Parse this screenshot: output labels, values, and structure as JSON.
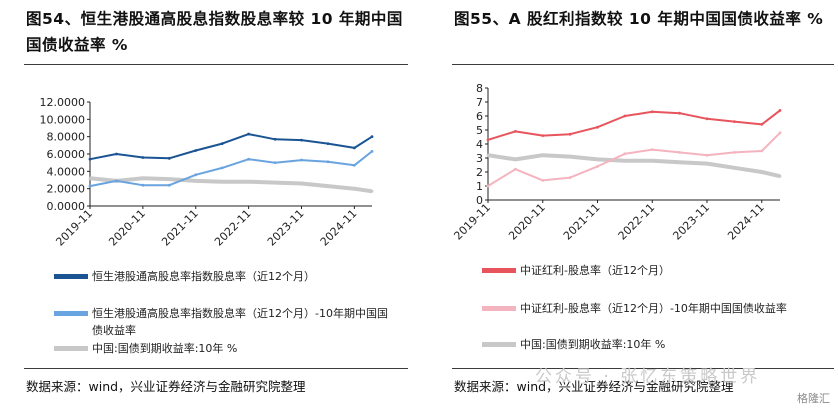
{
  "left": {
    "title": "图54、恒生港股通高股息指数股息率较  10  年期中国国债收益率  %",
    "source": "数据来源：wind，兴业证券经济与金融研究院整理",
    "legend": [
      {
        "label": "恒生港股通高股息率指数股息率（近12个月）",
        "color": "#1b5493"
      },
      {
        "label": "恒生港股通高股息率指数股息率（近12个月）-10年期中国国债收益率",
        "color": "#6aa4e0"
      },
      {
        "label": "中国:国债到期收益率:10年  %",
        "color": "#c8c8c8"
      }
    ]
  },
  "right": {
    "title": "图55、A  股红利指数较  10  年期中国国债收益率  %",
    "source": "数据来源：wind，兴业证券经济与金融研究院整理",
    "legend": [
      {
        "label": "中证红利-股息率（近12个月）",
        "color": "#e8545c"
      },
      {
        "label": "中证红利-股息率（近12个月）-10年期中国国债收益率",
        "color": "#f4b4bf"
      },
      {
        "label": "中国:国债到期收益率:10年  %",
        "color": "#c8c8c8"
      }
    ]
  },
  "watermark": "公众号 · 张忆东策略世界",
  "logo": "格隆汇",
  "chart_data": [
    {
      "type": "line",
      "x": [
        "2019-11",
        "2020-05",
        "2020-11",
        "2021-05",
        "2021-11",
        "2022-05",
        "2022-11",
        "2023-05",
        "2023-11",
        "2024-05",
        "2024-11",
        "2025-03"
      ],
      "xticks": [
        "2019-11",
        "2020-11",
        "2021-11",
        "2022-11",
        "2023-11",
        "2024-11"
      ],
      "yticks": [
        "0.0000",
        "2.0000",
        "4.0000",
        "6.0000",
        "8.0000",
        "10.0000",
        "12.0000"
      ],
      "ylim": [
        0,
        12
      ],
      "series": [
        {
          "name": "恒生港股通高股息率指数股息率（近12个月）",
          "color": "#1b5493",
          "values": [
            5.4,
            6.0,
            5.6,
            5.5,
            6.4,
            7.2,
            8.3,
            7.7,
            7.6,
            7.2,
            6.7,
            8.0
          ]
        },
        {
          "name": "恒生港股通高股息率指数股息率（近12个月）-10年期中国国债收益率",
          "color": "#6aa4e0",
          "values": [
            2.3,
            2.9,
            2.4,
            2.4,
            3.6,
            4.4,
            5.4,
            5.0,
            5.3,
            5.1,
            4.7,
            6.3
          ]
        },
        {
          "name": "中国:国债到期收益率:10年  %",
          "color": "#c8c8c8",
          "values": [
            3.2,
            2.9,
            3.2,
            3.1,
            2.9,
            2.8,
            2.8,
            2.7,
            2.6,
            2.3,
            2.0,
            1.7
          ]
        }
      ]
    },
    {
      "type": "line",
      "x": [
        "2019-11",
        "2020-05",
        "2020-11",
        "2021-05",
        "2021-11",
        "2022-05",
        "2022-11",
        "2023-05",
        "2023-11",
        "2024-05",
        "2024-11",
        "2025-03"
      ],
      "xticks": [
        "2019-11",
        "2020-11",
        "2021-11",
        "2022-11",
        "2023-11",
        "2024-11"
      ],
      "yticks": [
        "0",
        "1",
        "2",
        "3",
        "4",
        "5",
        "6",
        "7",
        "8"
      ],
      "ylim": [
        0,
        8
      ],
      "series": [
        {
          "name": "中证红利-股息率（近12个月）",
          "color": "#e8545c",
          "values": [
            4.3,
            4.9,
            4.6,
            4.7,
            5.2,
            6.0,
            6.3,
            6.2,
            5.8,
            5.6,
            5.4,
            6.4
          ]
        },
        {
          "name": "中证红利-股息率（近12个月）-10年期中国国债收益率",
          "color": "#f4b4bf",
          "values": [
            1.0,
            2.2,
            1.4,
            1.6,
            2.4,
            3.3,
            3.6,
            3.4,
            3.2,
            3.4,
            3.5,
            4.8
          ]
        },
        {
          "name": "中国:国债到期收益率:10年  %",
          "color": "#c8c8c8",
          "values": [
            3.2,
            2.9,
            3.2,
            3.1,
            2.9,
            2.8,
            2.8,
            2.7,
            2.6,
            2.3,
            2.0,
            1.7
          ]
        }
      ]
    }
  ]
}
